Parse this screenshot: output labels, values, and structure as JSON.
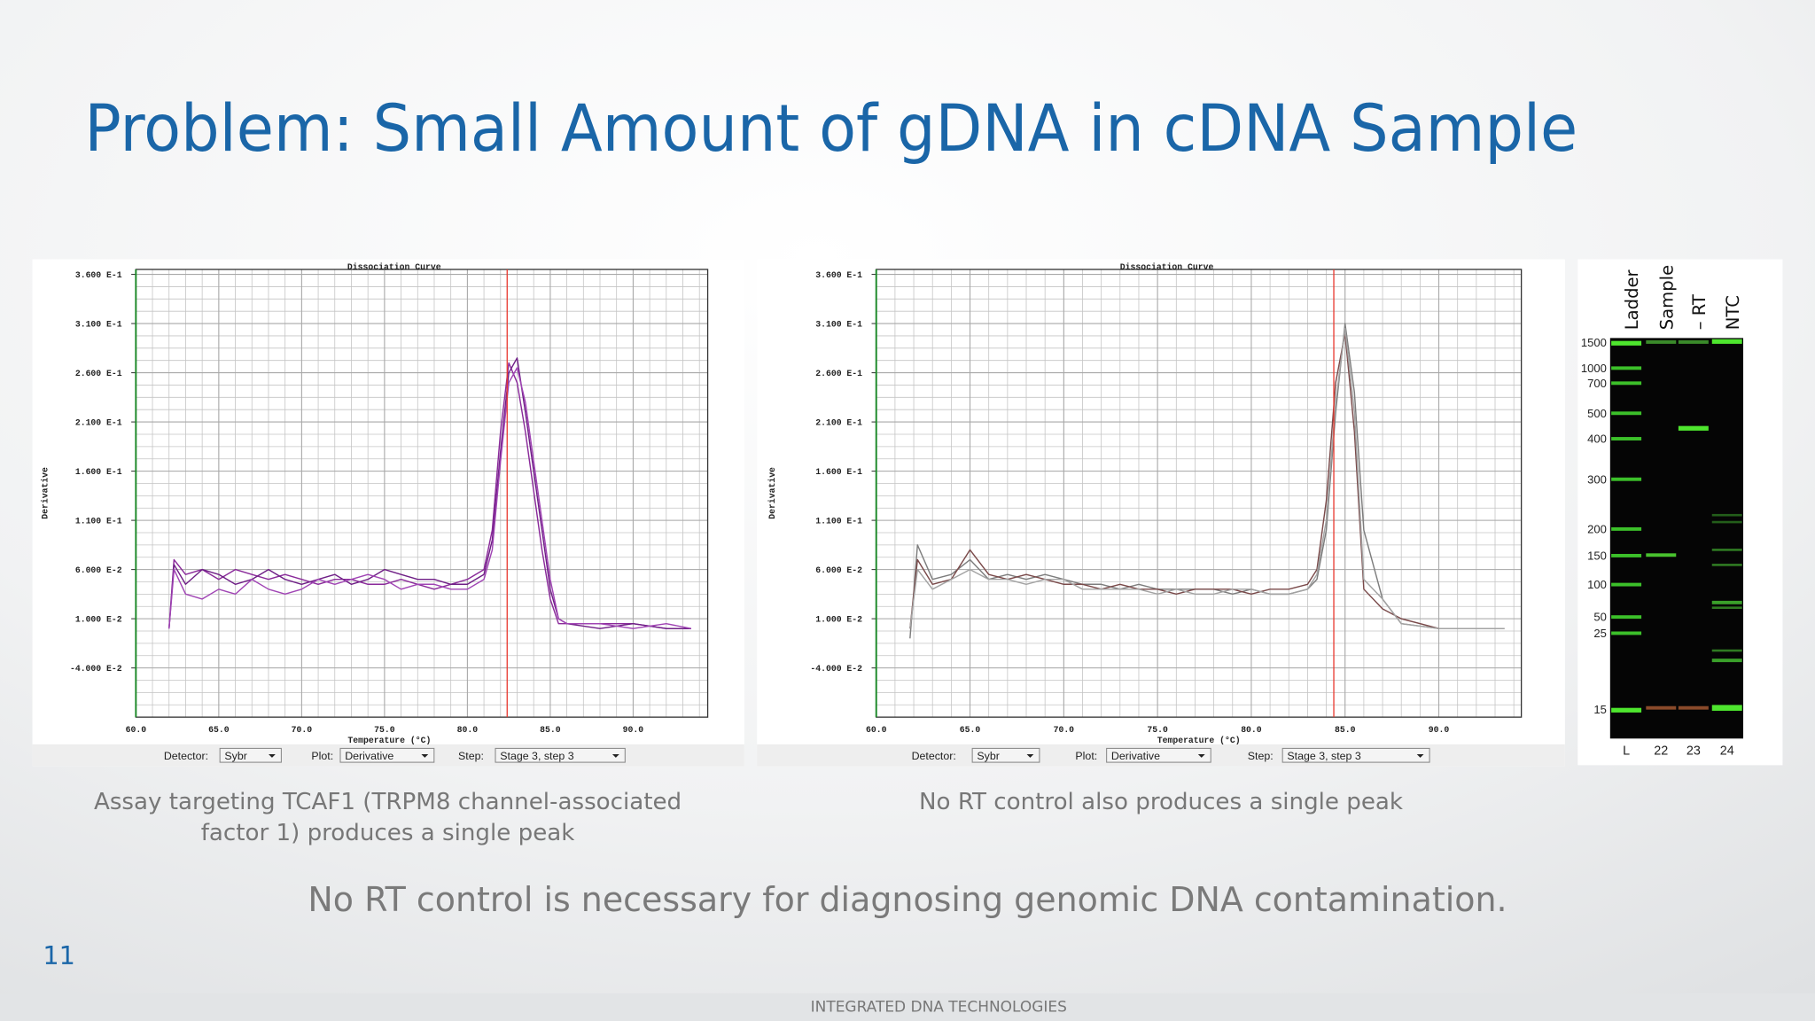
{
  "title": "Problem: Small Amount of gDNA in cDNA Sample",
  "chart_data": [
    {
      "type": "line",
      "title": "Dissociation Curve",
      "x_label": "Temperature (°C)",
      "y_label": "Derivative",
      "xlim": [
        60,
        94.5
      ],
      "ylim": [
        -0.09,
        0.365
      ],
      "grid": true,
      "xticks": [
        {
          "value": 60,
          "label": "60.0"
        },
        {
          "value": 65,
          "label": "65.0"
        },
        {
          "value": 70,
          "label": "70.0"
        },
        {
          "value": 75,
          "label": "75.0"
        },
        {
          "value": 80,
          "label": "80.0"
        },
        {
          "value": 85,
          "label": "85.0"
        },
        {
          "value": 90,
          "label": "90.0"
        }
      ],
      "yticks": [
        {
          "value": 0.36,
          "label": "3.600 E-1"
        },
        {
          "value": 0.31,
          "label": "3.100 E-1"
        },
        {
          "value": 0.26,
          "label": "2.600 E-1"
        },
        {
          "value": 0.21,
          "label": "2.100 E-1"
        },
        {
          "value": 0.16,
          "label": "1.600 E-1"
        },
        {
          "value": 0.11,
          "label": "1.100 E-1"
        },
        {
          "value": 0.06,
          "label": "6.000 E-2"
        },
        {
          "value": 0.01,
          "label": "1.000 E-2"
        },
        {
          "value": -0.04,
          "label": "-4.000 E-2"
        }
      ],
      "marker_line": {
        "x": 82.4,
        "color": "#e8392f"
      },
      "x": [
        62,
        62.3,
        63,
        64,
        65,
        66,
        67,
        68,
        69,
        70,
        71,
        72,
        73,
        74,
        75,
        76,
        77,
        78,
        79,
        80,
        81,
        81.5,
        82,
        82.5,
        83,
        83.5,
        84,
        84.5,
        85,
        85.5,
        86,
        88,
        90,
        92,
        93.5
      ],
      "series": [
        {
          "color": "#8a2a9a",
          "values": [
            0.0,
            0.07,
            0.055,
            0.06,
            0.05,
            0.06,
            0.055,
            0.05,
            0.055,
            0.05,
            0.045,
            0.05,
            0.05,
            0.045,
            0.045,
            0.05,
            0.045,
            0.04,
            0.045,
            0.05,
            0.06,
            0.1,
            0.2,
            0.27,
            0.25,
            0.2,
            0.14,
            0.08,
            0.03,
            0.005,
            0.005,
            0.005,
            0.005,
            0.0,
            0.0
          ]
        },
        {
          "color": "#6f1f86",
          "values": [
            0.0,
            0.065,
            0.045,
            0.06,
            0.055,
            0.045,
            0.05,
            0.06,
            0.05,
            0.045,
            0.05,
            0.055,
            0.045,
            0.05,
            0.06,
            0.055,
            0.05,
            0.05,
            0.045,
            0.045,
            0.055,
            0.09,
            0.18,
            0.26,
            0.275,
            0.22,
            0.16,
            0.1,
            0.04,
            0.01,
            0.005,
            0.0,
            0.005,
            0.0,
            0.0
          ]
        },
        {
          "color": "#a044b4",
          "values": [
            0.0,
            0.06,
            0.035,
            0.03,
            0.04,
            0.035,
            0.05,
            0.04,
            0.035,
            0.04,
            0.05,
            0.045,
            0.05,
            0.055,
            0.05,
            0.04,
            0.045,
            0.045,
            0.04,
            0.04,
            0.05,
            0.08,
            0.17,
            0.25,
            0.265,
            0.23,
            0.17,
            0.11,
            0.05,
            0.01,
            0.005,
            0.005,
            0.0,
            0.005,
            0.0
          ]
        }
      ],
      "controls": [
        {
          "label": "Detector:",
          "value": "Sybr"
        },
        {
          "label": "Plot:",
          "value": "Derivative"
        },
        {
          "label": "Step:",
          "value": "Stage 3, step 3"
        }
      ]
    },
    {
      "type": "line",
      "title": "Dissociation Curve",
      "x_label": "Temperature (°C)",
      "y_label": "Derivative",
      "xlim": [
        60,
        94.4
      ],
      "ylim": [
        -0.09,
        0.365
      ],
      "grid": true,
      "xticks": [
        {
          "value": 60,
          "label": "60.0"
        },
        {
          "value": 65,
          "label": "65.0"
        },
        {
          "value": 70,
          "label": "70.0"
        },
        {
          "value": 75,
          "label": "75.0"
        },
        {
          "value": 80,
          "label": "80.0"
        },
        {
          "value": 85,
          "label": "85.0"
        },
        {
          "value": 90,
          "label": "90.0"
        }
      ],
      "yticks": [
        {
          "value": 0.36,
          "label": "3.600 E-1"
        },
        {
          "value": 0.31,
          "label": "3.100 E-1"
        },
        {
          "value": 0.26,
          "label": "2.600 E-1"
        },
        {
          "value": 0.21,
          "label": "2.100 E-1"
        },
        {
          "value": 0.16,
          "label": "1.600 E-1"
        },
        {
          "value": 0.11,
          "label": "1.100 E-1"
        },
        {
          "value": 0.06,
          "label": "6.000 E-2"
        },
        {
          "value": 0.01,
          "label": "1.000 E-2"
        },
        {
          "value": -0.04,
          "label": "-4.000 E-2"
        }
      ],
      "marker_line": {
        "x": 84.4,
        "color": "#e8392f"
      },
      "x": [
        61.8,
        62.2,
        63,
        64,
        65,
        66,
        67,
        68,
        69,
        70,
        71,
        72,
        73,
        74,
        75,
        76,
        77,
        78,
        79,
        80,
        81,
        82,
        83,
        83.5,
        84,
        84.5,
        85,
        85.5,
        86,
        87,
        88,
        90,
        92,
        93.5
      ],
      "series": [
        {
          "color": "#7d7d7d",
          "values": [
            -0.01,
            0.085,
            0.05,
            0.055,
            0.07,
            0.05,
            0.055,
            0.05,
            0.055,
            0.05,
            0.045,
            0.045,
            0.04,
            0.045,
            0.04,
            0.04,
            0.04,
            0.04,
            0.035,
            0.04,
            0.035,
            0.035,
            0.04,
            0.05,
            0.1,
            0.22,
            0.31,
            0.24,
            0.1,
            0.03,
            0.005,
            0.0,
            0.0,
            0.0
          ]
        },
        {
          "color": "#7a4a4a",
          "values": [
            0.0,
            0.07,
            0.045,
            0.05,
            0.08,
            0.055,
            0.05,
            0.055,
            0.05,
            0.045,
            0.045,
            0.04,
            0.045,
            0.04,
            0.04,
            0.035,
            0.04,
            0.04,
            0.04,
            0.035,
            0.04,
            0.04,
            0.045,
            0.06,
            0.13,
            0.25,
            0.3,
            0.2,
            0.04,
            0.02,
            0.01,
            0.0,
            0.0,
            0.0
          ]
        },
        {
          "color": "#a3a3a3",
          "values": [
            0.0,
            0.06,
            0.04,
            0.05,
            0.06,
            0.05,
            0.05,
            0.045,
            0.05,
            0.05,
            0.04,
            0.04,
            0.04,
            0.04,
            0.035,
            0.04,
            0.035,
            0.035,
            0.04,
            0.04,
            0.035,
            0.035,
            0.04,
            0.055,
            0.11,
            0.23,
            0.305,
            0.22,
            0.05,
            0.03,
            0.005,
            0.0,
            0.0,
            0.0
          ]
        }
      ],
      "controls": [
        {
          "label": "Detector:",
          "value": "Sybr"
        },
        {
          "label": "Plot:",
          "value": "Derivative"
        },
        {
          "label": "Step:",
          "value": "Stage 3, step 3"
        }
      ]
    }
  ],
  "captions": [
    [
      "Assay targeting TCAF1 (TRPM8 channel-associated",
      "factor 1) produces a single peak"
    ],
    [
      "No RT control also produces a single peak"
    ]
  ],
  "gel": {
    "lanes": [
      "Ladder",
      "Sample",
      "– RT",
      "NTC"
    ],
    "size_ticks": [
      1500,
      1000,
      700,
      500,
      400,
      300,
      200,
      150,
      100,
      50,
      25,
      15
    ],
    "lane_numbers": [
      "L",
      "22",
      "23",
      "24"
    ]
  },
  "conclusion": "No RT control is necessary for diagnosing genomic DNA contamination.",
  "slide_number": "11",
  "footer": "INTEGRATED DNA TECHNOLOGIES"
}
